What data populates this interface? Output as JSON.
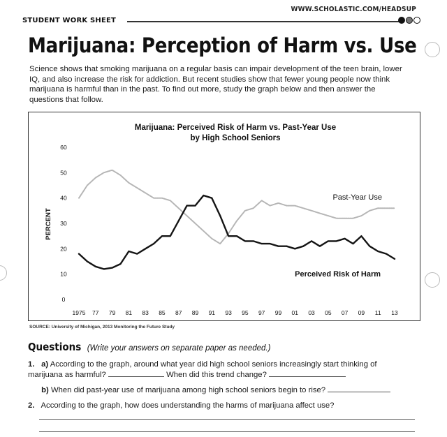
{
  "header": {
    "url": "WWW.SCHOLASTIC.COM/HEADSUP",
    "sheet_label": "STUDENT WORK SHEET"
  },
  "title": "Marijuana: Perception of Harm vs. Use",
  "intro": "Science shows that smoking marijuana on a regular basis can impair development of the teen brain, lower IQ, and also increase the risk for addiction. But recent studies show that fewer young people now think marijuana is harmful than in the past. To find out more, study the graph below and then answer the questions that follow.",
  "chart_data": {
    "type": "line",
    "title": "Marijuana: Perceived Risk of Harm vs. Past-Year Use",
    "subtitle": "by High School Seniors",
    "ylabel": "PERCENT",
    "xlabel": "",
    "ylim": [
      0,
      60
    ],
    "yticks": [
      "0",
      "10",
      "20",
      "30",
      "40",
      "50",
      "60"
    ],
    "xlim": [
      1975,
      2013
    ],
    "xticks": [
      "1975",
      "77",
      "79",
      "81",
      "83",
      "85",
      "87",
      "89",
      "91",
      "93",
      "95",
      "97",
      "99",
      "01",
      "03",
      "05",
      "07",
      "09",
      "11",
      "13"
    ],
    "x": [
      1975,
      1976,
      1977,
      1978,
      1979,
      1980,
      1981,
      1982,
      1983,
      1984,
      1985,
      1986,
      1987,
      1988,
      1989,
      1990,
      1991,
      1992,
      1993,
      1994,
      1995,
      1996,
      1997,
      1998,
      1999,
      2000,
      2001,
      2002,
      2003,
      2004,
      2005,
      2006,
      2007,
      2008,
      2009,
      2010,
      2011,
      2012,
      2013
    ],
    "series": [
      {
        "name": "Past-Year Use",
        "style": "gray",
        "values": [
          40,
          45,
          48,
          50,
          51,
          49,
          46,
          44,
          42,
          40,
          40,
          39,
          36,
          33,
          30,
          27,
          24,
          22,
          26,
          31,
          35,
          36,
          39,
          37,
          38,
          37,
          37,
          36,
          35,
          34,
          33,
          32,
          32,
          32,
          33,
          35,
          36,
          36,
          36
        ]
      },
      {
        "name": "Perceived Risk of Harm",
        "style": "black",
        "values": [
          18,
          15,
          13,
          12,
          12.5,
          14,
          19,
          18,
          20,
          22,
          25,
          25,
          31,
          37,
          37,
          41,
          40,
          33,
          25,
          25,
          23,
          23,
          22,
          22,
          21,
          21,
          20,
          21,
          23,
          21,
          23,
          23,
          24,
          22,
          25,
          21,
          19,
          18,
          16
        ]
      }
    ],
    "annotations": [
      "Past-Year Use",
      "Perceived Risk of Harm"
    ],
    "colors": {
      "use": "#b5b5b5",
      "risk": "#141414"
    }
  },
  "source": "SOURCE: University of Michigan, 2013 Monitoring the Future Study",
  "questions": {
    "heading": "Questions",
    "note": "(Write your answers on separate paper as needed.)",
    "q1_num": "1.",
    "q1a_label": "a)",
    "q1a_text": "According to the graph, around what year did high school seniors increasingly start thinking of marijuana as harmful?",
    "q1a_followup": "When did this trend change?",
    "q1b_label": "b)",
    "q1b_text": "When did past-year use of marijuana among high school seniors begin to rise?",
    "q2_num": "2.",
    "q2_text": "According to the graph, how does understanding the harms of marijuana affect use?"
  }
}
